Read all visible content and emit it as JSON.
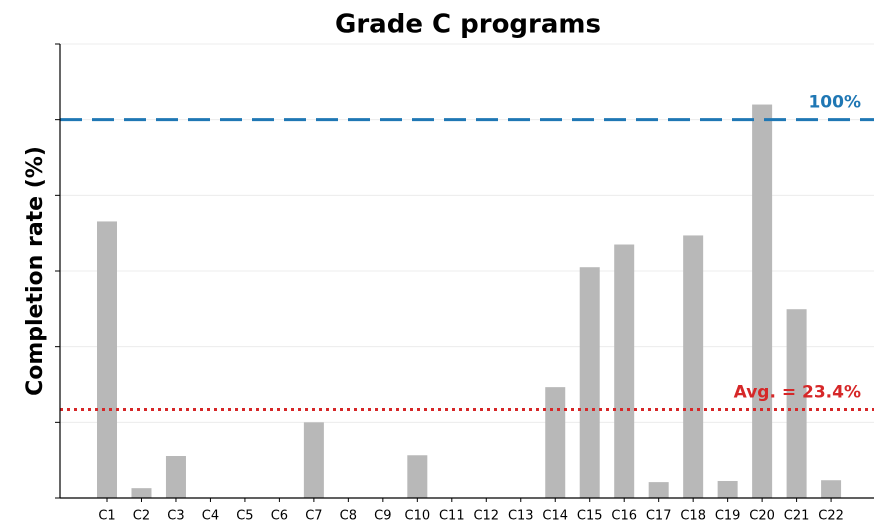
{
  "chart_data": {
    "type": "bar",
    "title": "Grade C programs",
    "y_label": "Completion rate (%)",
    "categories": [
      "C1",
      "C2",
      "C3",
      "C4",
      "C5",
      "C6",
      "C7",
      "C8",
      "C9",
      "C10",
      "C11",
      "C12",
      "C13",
      "C14",
      "C15",
      "C16",
      "C17",
      "C18",
      "C19",
      "C20",
      "C21",
      "C22"
    ],
    "values": [
      73.1,
      2.6,
      11.1,
      0,
      0,
      0,
      20,
      0,
      0,
      11.3,
      0,
      0,
      0,
      29.3,
      61,
      67,
      4.2,
      69.4,
      4.5,
      104,
      49.9,
      4.7
    ],
    "color": "#b8b8b8",
    "ylim": [
      0,
      120
    ],
    "yticks": [
      0,
      20,
      40,
      60,
      80,
      100,
      120
    ],
    "grid": true,
    "reference_lines": [
      {
        "value": 100,
        "label": "100%",
        "color": "#1f77b4",
        "style": "dashed"
      },
      {
        "value": 23.4,
        "label": "Avg. = 23.4%",
        "color": "#d62728",
        "style": "dotted"
      }
    ]
  }
}
